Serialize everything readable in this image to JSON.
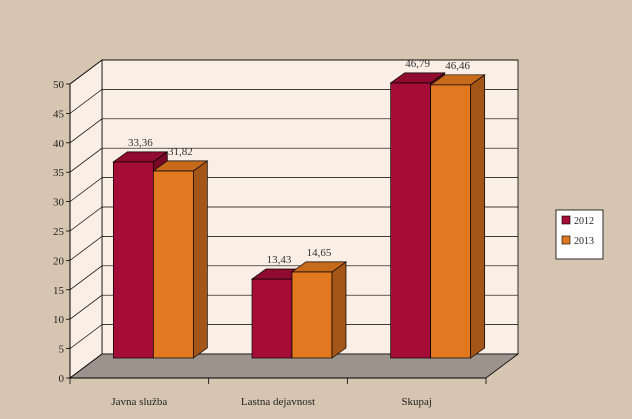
{
  "chart_data": {
    "type": "bar",
    "title": "",
    "xlabel": "",
    "ylabel": "",
    "categories": [
      "Javna služba",
      "Lastna dejavnost",
      "Skupaj"
    ],
    "series": [
      {
        "name": "2012",
        "values": [
          33.36,
          13.43,
          46.79
        ],
        "labels": [
          "33,36",
          "13,43",
          "46,79"
        ],
        "color": "#a50c36"
      },
      {
        "name": "2013",
        "values": [
          31.82,
          14.65,
          46.46
        ],
        "labels": [
          "31,82",
          "14,65",
          "46,46"
        ],
        "color": "#e27820"
      }
    ],
    "ylim": [
      0,
      50
    ],
    "yticks": [
      0,
      5,
      10,
      15,
      20,
      25,
      30,
      35,
      40,
      45,
      50
    ],
    "grid": true,
    "legend": "right",
    "three_d": true
  },
  "style": {
    "page_background": "#d6c6b1",
    "plot_background": "#fbeee4",
    "floor_color": "#9c948c",
    "grid_color": "#000000"
  }
}
